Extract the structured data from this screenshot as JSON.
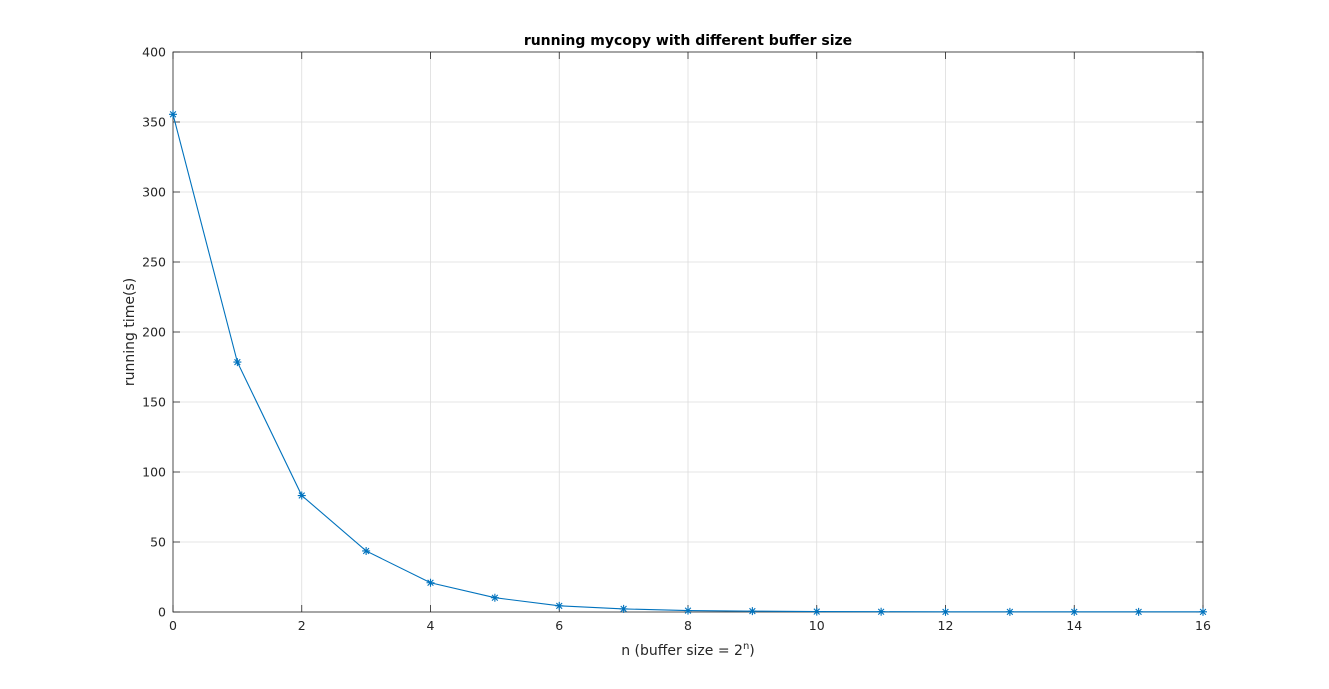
{
  "chart_data": {
    "type": "line",
    "title": "running mycopy with different buffer size",
    "xlabel": "n (buffer size = 2",
    "xlabel_superscript": "n",
    "xlabel_suffix": ")",
    "ylabel": "running time(s)",
    "xlim": [
      0,
      16
    ],
    "ylim": [
      0,
      400
    ],
    "xticks": [
      0,
      2,
      4,
      6,
      8,
      10,
      12,
      14,
      16
    ],
    "yticks": [
      0,
      50,
      100,
      150,
      200,
      250,
      300,
      350,
      400
    ],
    "grid": true,
    "marker": "asterisk",
    "series": [
      {
        "color": "#0072BD",
        "x": [
          0,
          1,
          2,
          3,
          4,
          5,
          6,
          7,
          8,
          9,
          10,
          11,
          12,
          13,
          14,
          15,
          16
        ],
        "values": [
          355.5,
          178.5,
          83.2,
          43.6,
          20.9,
          10.2,
          4.4,
          2.2,
          1.0,
          0.6,
          0.3,
          0.2,
          0.1,
          0.1,
          0.1,
          0.1,
          0.1
        ]
      }
    ]
  }
}
